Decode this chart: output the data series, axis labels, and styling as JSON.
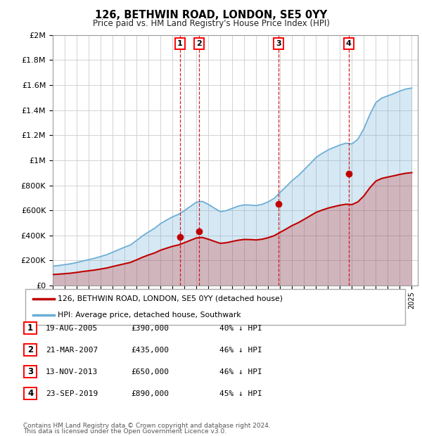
{
  "title": "126, BETHWIN ROAD, LONDON, SE5 0YY",
  "subtitle": "Price paid vs. HM Land Registry's House Price Index (HPI)",
  "hpi_label": "HPI: Average price, detached house, Southwark",
  "property_label": "126, BETHWIN ROAD, LONDON, SE5 0YY (detached house)",
  "footer1": "Contains HM Land Registry data © Crown copyright and database right 2024.",
  "footer2": "This data is licensed under the Open Government Licence v3.0.",
  "hpi_color": "#6baed6",
  "property_color": "#c00000",
  "ylim": [
    0,
    2000000
  ],
  "yticks": [
    0,
    200000,
    400000,
    600000,
    800000,
    1000000,
    1200000,
    1400000,
    1600000,
    1800000,
    2000000
  ],
  "ytick_labels": [
    "£0",
    "£200K",
    "£400K",
    "£600K",
    "£800K",
    "£1M",
    "£1.2M",
    "£1.4M",
    "£1.6M",
    "£1.8M",
    "£2M"
  ],
  "xstart": 1995.0,
  "xend": 2025.5,
  "purchases": [
    {
      "num": 1,
      "date": "19-AUG-2005",
      "year": 2005.63,
      "price": 390000,
      "pct": "40%"
    },
    {
      "num": 2,
      "date": "21-MAR-2007",
      "year": 2007.22,
      "price": 435000,
      "pct": "46%"
    },
    {
      "num": 3,
      "date": "13-NOV-2013",
      "year": 2013.87,
      "price": 650000,
      "pct": "46%"
    },
    {
      "num": 4,
      "date": "23-SEP-2019",
      "year": 2019.73,
      "price": 890000,
      "pct": "45%"
    }
  ],
  "hpi_years": [
    1995,
    1995.5,
    1996,
    1996.5,
    1997,
    1997.5,
    1998,
    1998.5,
    1999,
    1999.5,
    2000,
    2000.5,
    2001,
    2001.5,
    2002,
    2002.5,
    2003,
    2003.5,
    2004,
    2004.5,
    2005,
    2005.5,
    2006,
    2006.5,
    2007,
    2007.5,
    2008,
    2008.5,
    2009,
    2009.5,
    2010,
    2010.5,
    2011,
    2011.5,
    2012,
    2012.5,
    2013,
    2013.5,
    2014,
    2014.5,
    2015,
    2015.5,
    2016,
    2016.5,
    2017,
    2017.5,
    2018,
    2018.5,
    2019,
    2019.5,
    2020,
    2020.5,
    2021,
    2021.5,
    2022,
    2022.5,
    2023,
    2023.5,
    2024,
    2024.5,
    2025
  ],
  "hpi_values": [
    155000,
    160000,
    167000,
    174000,
    184000,
    196000,
    207000,
    218000,
    232000,
    246000,
    266000,
    286000,
    306000,
    324000,
    360000,
    396000,
    428000,
    456000,
    494000,
    522000,
    548000,
    568000,
    598000,
    632000,
    665000,
    672000,
    648000,
    618000,
    590000,
    598000,
    616000,
    634000,
    644000,
    642000,
    638000,
    648000,
    668000,
    696000,
    744000,
    790000,
    838000,
    876000,
    924000,
    972000,
    1022000,
    1054000,
    1082000,
    1102000,
    1122000,
    1136000,
    1130000,
    1168000,
    1252000,
    1366000,
    1460000,
    1496000,
    1514000,
    1532000,
    1552000,
    1568000,
    1576000
  ],
  "prop_years": [
    1995,
    1995.5,
    1996,
    1996.5,
    1997,
    1997.5,
    1998,
    1998.5,
    1999,
    1999.5,
    2000,
    2000.5,
    2001,
    2001.5,
    2002,
    2002.5,
    2003,
    2003.5,
    2004,
    2004.5,
    2005,
    2005.5,
    2006,
    2006.5,
    2007,
    2007.5,
    2008,
    2008.5,
    2009,
    2009.5,
    2010,
    2010.5,
    2011,
    2011.5,
    2012,
    2012.5,
    2013,
    2013.5,
    2014,
    2014.5,
    2015,
    2015.5,
    2016,
    2016.5,
    2017,
    2017.5,
    2018,
    2018.5,
    2019,
    2019.5,
    2020,
    2020.5,
    2021,
    2021.5,
    2022,
    2022.5,
    2023,
    2023.5,
    2024,
    2024.5,
    2025
  ],
  "prop_values": [
    88000,
    91000,
    95000,
    99000,
    105000,
    112000,
    118000,
    124000,
    132000,
    140000,
    152000,
    163000,
    174000,
    185000,
    205000,
    226000,
    244000,
    260000,
    282000,
    298000,
    313000,
    324000,
    342000,
    361000,
    380000,
    384000,
    370000,
    353000,
    337000,
    342000,
    352000,
    362000,
    368000,
    367000,
    364000,
    370000,
    382000,
    398000,
    425000,
    451000,
    479000,
    501000,
    528000,
    556000,
    584000,
    602000,
    618000,
    630000,
    641000,
    649000,
    646000,
    668000,
    716000,
    781000,
    834000,
    855000,
    866000,
    876000,
    887000,
    896000,
    901000
  ]
}
